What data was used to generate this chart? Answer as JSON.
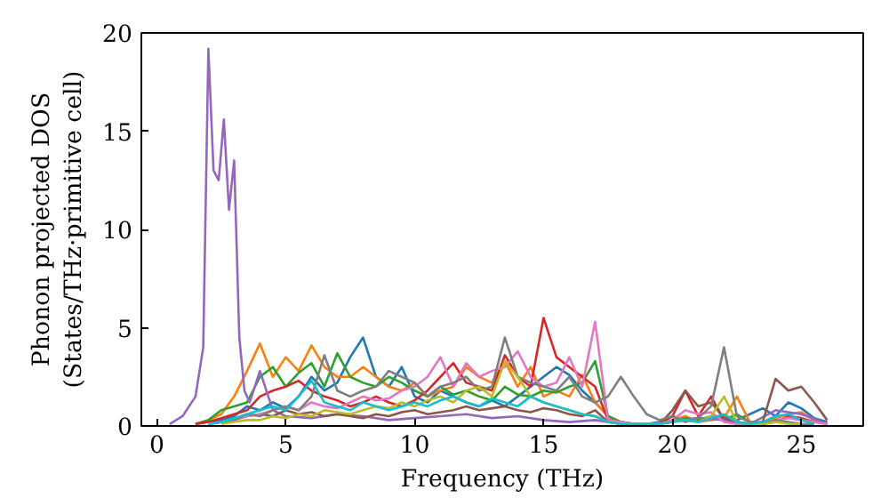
{
  "chart_data": {
    "type": "line",
    "xlabel": "Frequency (THz)",
    "ylabel": "Phonon projected DOS\n(States/THz·primitive cell)",
    "x": [
      1.5,
      2,
      2.5,
      3,
      3.5,
      4,
      4.5,
      5,
      5.5,
      6,
      6.5,
      7,
      7.5,
      8,
      8.5,
      9,
      9.5,
      10,
      10.5,
      11,
      11.5,
      12,
      12.5,
      13,
      13.5,
      14,
      14.5,
      15,
      15.5,
      16,
      16.5,
      17,
      17.5,
      18,
      18.5,
      19,
      19.5,
      20,
      20.5,
      21,
      21.5,
      22,
      22.5,
      23,
      23.5,
      24,
      24.5,
      25,
      25.5,
      26
    ],
    "xlim": [
      -0.6,
      27.4
    ],
    "ylim": [
      0,
      20
    ],
    "xticks": [
      0,
      5,
      10,
      15,
      20,
      25
    ],
    "yticks": [
      0,
      5,
      10,
      15,
      20
    ],
    "grid": false,
    "marker": "none",
    "line_style": "solid",
    "series": [
      {
        "color": "#1f77b4",
        "values": [
          0.1,
          0.2,
          0.3,
          0.5,
          1,
          0.8,
          1.2,
          0.9,
          1.5,
          2.5,
          1.8,
          2.2,
          3.5,
          4.5,
          2.5,
          2,
          3,
          1.5,
          1.2,
          1.8,
          1.5,
          1.2,
          1,
          1.3,
          1,
          1.5,
          2,
          2.5,
          3,
          2.6,
          1.8,
          1.2,
          0.5,
          0.2,
          0.1,
          0.1,
          0.2,
          0.5,
          0.3,
          0.4,
          0.3,
          0.5,
          0.3,
          0.6,
          0.9,
          0.5,
          1.2,
          0.9,
          0.4,
          0.2
        ]
      },
      {
        "color": "#ff7f0e",
        "values": [
          0.1,
          0.3,
          0.6,
          1.5,
          2.8,
          4.2,
          2.5,
          3.5,
          2.8,
          4.1,
          3,
          2.5,
          2.5,
          3,
          2.5,
          2,
          1.8,
          2.2,
          1.5,
          1.8,
          2,
          3,
          2.5,
          2.2,
          3.3,
          2,
          3,
          1.5,
          1.8,
          1.5,
          2.6,
          1.2,
          0.5,
          0.2,
          0.1,
          0.1,
          0.1,
          0.3,
          0.5,
          0.2,
          0.3,
          0.4,
          1.5,
          0.2,
          0.2,
          0.4,
          0.6,
          0.7,
          0.3,
          0.1
        ]
      },
      {
        "color": "#2ca02c",
        "values": [
          0.1,
          0.3,
          0.8,
          1,
          1.2,
          2.5,
          3,
          2,
          2.7,
          3.2,
          2,
          3.7,
          2.5,
          2.2,
          2,
          2.5,
          2.2,
          1.8,
          1.5,
          2,
          1.6,
          1.8,
          1.5,
          1.3,
          2,
          1.6,
          1.5,
          1.8,
          1.7,
          2,
          2.2,
          3.3,
          0.5,
          0.2,
          0.1,
          0.1,
          0.1,
          0.2,
          0.4,
          0.3,
          0.5,
          0.3,
          0.6,
          0.2,
          0.1,
          0.3,
          null,
          null,
          null,
          null
        ]
      },
      {
        "color": "#d62728",
        "values": [
          0.1,
          0.2,
          0.4,
          0.6,
          0.8,
          1.5,
          1.8,
          2,
          2.3,
          1.8,
          1.5,
          1.3,
          1,
          1.2,
          1.5,
          1.2,
          1,
          1.3,
          1.8,
          2.5,
          3.2,
          2.2,
          2,
          1.8,
          3.6,
          2.5,
          2,
          5.5,
          3.5,
          3,
          2.5,
          2,
          0.3,
          0.2,
          0.1,
          0.1,
          0.1,
          0.5,
          1.8,
          0.5,
          1.5,
          0.3,
          0.2,
          0.1,
          0.1,
          0.2,
          0.5,
          0.4,
          0.2,
          0.1
        ]
      },
      {
        "color": "#9467bd",
        "x": [
          0.5,
          1,
          1.5,
          1.8,
          2,
          2.2,
          2.4,
          2.6,
          2.8,
          3,
          3.2,
          3.4,
          3.6,
          4,
          4.5,
          5,
          6,
          7,
          8,
          9,
          10,
          11,
          12,
          13,
          14,
          15,
          16,
          17,
          18,
          19,
          20,
          21,
          22,
          23,
          24,
          25,
          26
        ],
        "values": [
          0.1,
          0.5,
          1.5,
          4,
          19.2,
          13,
          12.5,
          15.6,
          11,
          13.5,
          4.5,
          1.8,
          1.2,
          2.8,
          0.8,
          0.5,
          0.4,
          0.6,
          0.5,
          0.3,
          0.4,
          0.5,
          0.6,
          0.4,
          0.5,
          0.3,
          0.2,
          0.3,
          0.1,
          0.1,
          0.2,
          0.4,
          0.3,
          0.1,
          0.8,
          0.6,
          0.1
        ]
      },
      {
        "color": "#8c564b",
        "values": [
          null,
          0.1,
          0.2,
          0.3,
          0.5,
          0.6,
          0.5,
          0.8,
          0.6,
          0.7,
          0.5,
          0.6,
          0.5,
          0.4,
          0.6,
          0.5,
          0.7,
          0.8,
          0.6,
          0.7,
          0.8,
          1,
          0.8,
          0.9,
          1,
          0.8,
          0.7,
          0.9,
          0.8,
          0.6,
          0.5,
          0.8,
          0.2,
          0.1,
          0.1,
          0.1,
          0.1,
          0.8,
          1.8,
          1,
          1.2,
          0.4,
          0.2,
          0.1,
          0.2,
          2.4,
          1.8,
          2,
          1.2,
          0.3
        ]
      },
      {
        "color": "#e377c2",
        "values": [
          null,
          0.1,
          0.2,
          0.3,
          0.5,
          0.6,
          0.8,
          1,
          0.8,
          1.2,
          1,
          0.9,
          1.2,
          1.5,
          1.3,
          1.4,
          1.8,
          2,
          2.5,
          3.5,
          2,
          3.2,
          2.5,
          2.8,
          3,
          3.8,
          2.5,
          2,
          2.2,
          3.5,
          2,
          5.3,
          0.3,
          0.2,
          0.1,
          0.1,
          0.1,
          0.3,
          0.8,
          0.6,
          0.7,
          0.2,
          0.1,
          0.1,
          0.1,
          0.3,
          0.4,
          0.3,
          0.2,
          0.1
        ]
      },
      {
        "color": "#7f7f7f",
        "values": [
          null,
          0.1,
          0.2,
          0.3,
          0.6,
          0.5,
          0.8,
          1,
          0.8,
          1.5,
          3.6,
          1.8,
          1.5,
          1.8,
          2,
          2.8,
          2.5,
          2.2,
          1.5,
          2,
          2.2,
          2.5,
          1.8,
          2,
          4.5,
          2.5,
          2.2,
          2,
          1.8,
          2.5,
          1.5,
          1.2,
          1.5,
          2.5,
          1.5,
          0.6,
          0.3,
          0.5,
          0.2,
          0.4,
          1,
          4,
          0.5,
          0.2,
          0.1,
          0.3,
          0.2,
          0.1,
          0.1,
          null
        ]
      },
      {
        "color": "#bcbd22",
        "values": [
          null,
          null,
          0.1,
          0.2,
          0.3,
          0.3,
          0.5,
          0.4,
          0.6,
          0.5,
          0.8,
          0.7,
          0.6,
          0.8,
          1,
          0.9,
          1.2,
          1,
          1.3,
          1.5,
          1.2,
          1.8,
          2,
          1.5,
          3.3,
          2.5,
          1.5,
          1.2,
          1,
          0.8,
          0.6,
          0.5,
          0.2,
          0.1,
          0.1,
          0.1,
          0.1,
          0.2,
          0.3,
          0.2,
          0.5,
          1.5,
          0.2,
          0.1,
          0.1,
          0.2,
          0.1,
          0.1,
          null,
          null
        ]
      },
      {
        "color": "#17becf",
        "values": [
          null,
          0.1,
          0.2,
          0.4,
          0.6,
          0.8,
          1,
          0.8,
          1.5,
          2.3,
          1.2,
          1,
          0.8,
          1.2,
          1,
          0.8,
          1,
          1.2,
          1,
          1.3,
          1.5,
          1.2,
          1,
          1.4,
          1.2,
          1,
          1.5,
          1.2,
          1,
          0.8,
          0.6,
          0.5,
          0.2,
          0.1,
          0.1,
          0.1,
          0.1,
          0.2,
          0.3,
          0.2,
          0.4,
          0.6,
          0.2,
          0.1,
          0.2,
          0.5,
          0.6,
          0.3,
          0.1,
          null
        ]
      }
    ]
  }
}
